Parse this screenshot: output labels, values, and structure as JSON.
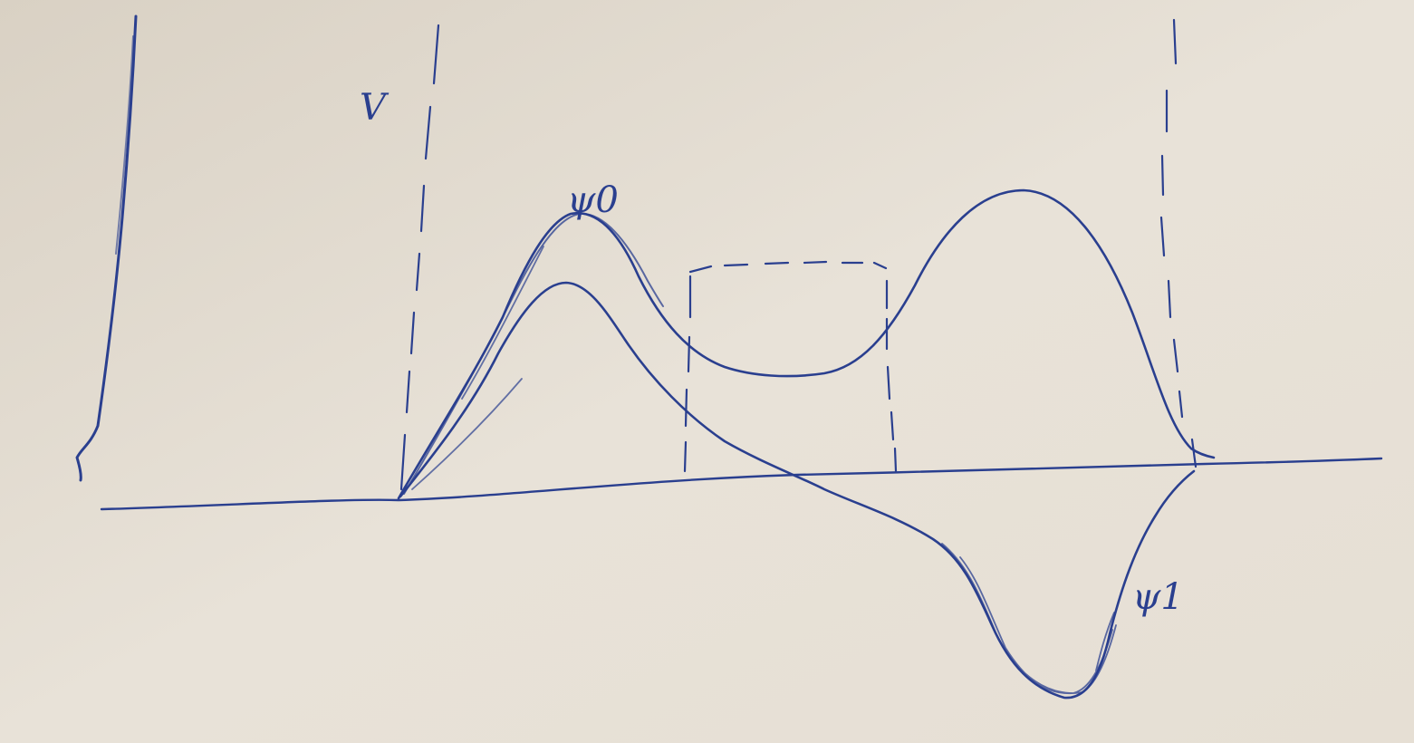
{
  "paper": {
    "background": "#e5ded3",
    "ink_color": "#2a3f8f"
  },
  "labels": {
    "potential": "V",
    "ground_state": "ψ0",
    "first_excited": "ψ1"
  },
  "diagram": {
    "description_elements": [
      "potential-wall",
      "left-boundary-dashed",
      "right-boundary-dashed",
      "central-barrier-dashed",
      "baseline-axis",
      "psi0-curve",
      "psi1-curve"
    ]
  }
}
